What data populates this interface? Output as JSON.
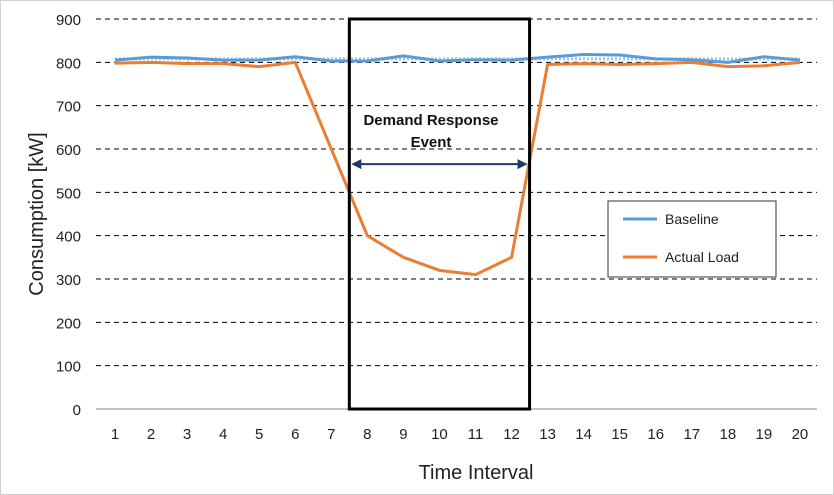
{
  "chart_data": {
    "type": "line",
    "xlabel": "Time Interval",
    "ylabel": "Consumption [kW]",
    "ylim": [
      0,
      900
    ],
    "yticks": [
      0,
      100,
      200,
      300,
      400,
      500,
      600,
      700,
      800,
      900
    ],
    "x": [
      1,
      2,
      3,
      4,
      5,
      6,
      7,
      8,
      9,
      10,
      11,
      12,
      13,
      14,
      15,
      16,
      17,
      18,
      19,
      20
    ],
    "grid": "horizontal dashed",
    "legend_position": "right",
    "series": [
      {
        "name": "Baseline",
        "color": "#5B9BD5",
        "values": [
          805,
          812,
          810,
          805,
          805,
          813,
          803,
          803,
          815,
          803,
          806,
          805,
          812,
          818,
          817,
          808,
          806,
          800,
          813,
          805
        ]
      },
      {
        "name": "Actual Load",
        "color": "#ED7D31",
        "values": [
          798,
          800,
          797,
          797,
          790,
          800,
          600,
          400,
          350,
          320,
          310,
          350,
          795,
          797,
          795,
          797,
          800,
          790,
          792,
          800
        ]
      }
    ],
    "reference_line": {
      "style": "dotted",
      "color": "#9DC3E6",
      "value": 808
    },
    "event": {
      "label": "Demand Response Event",
      "label_line1": "Demand Response",
      "label_line2": "Event",
      "x_start": 7.5,
      "x_end": 12.5,
      "arrow_value": 565
    }
  }
}
